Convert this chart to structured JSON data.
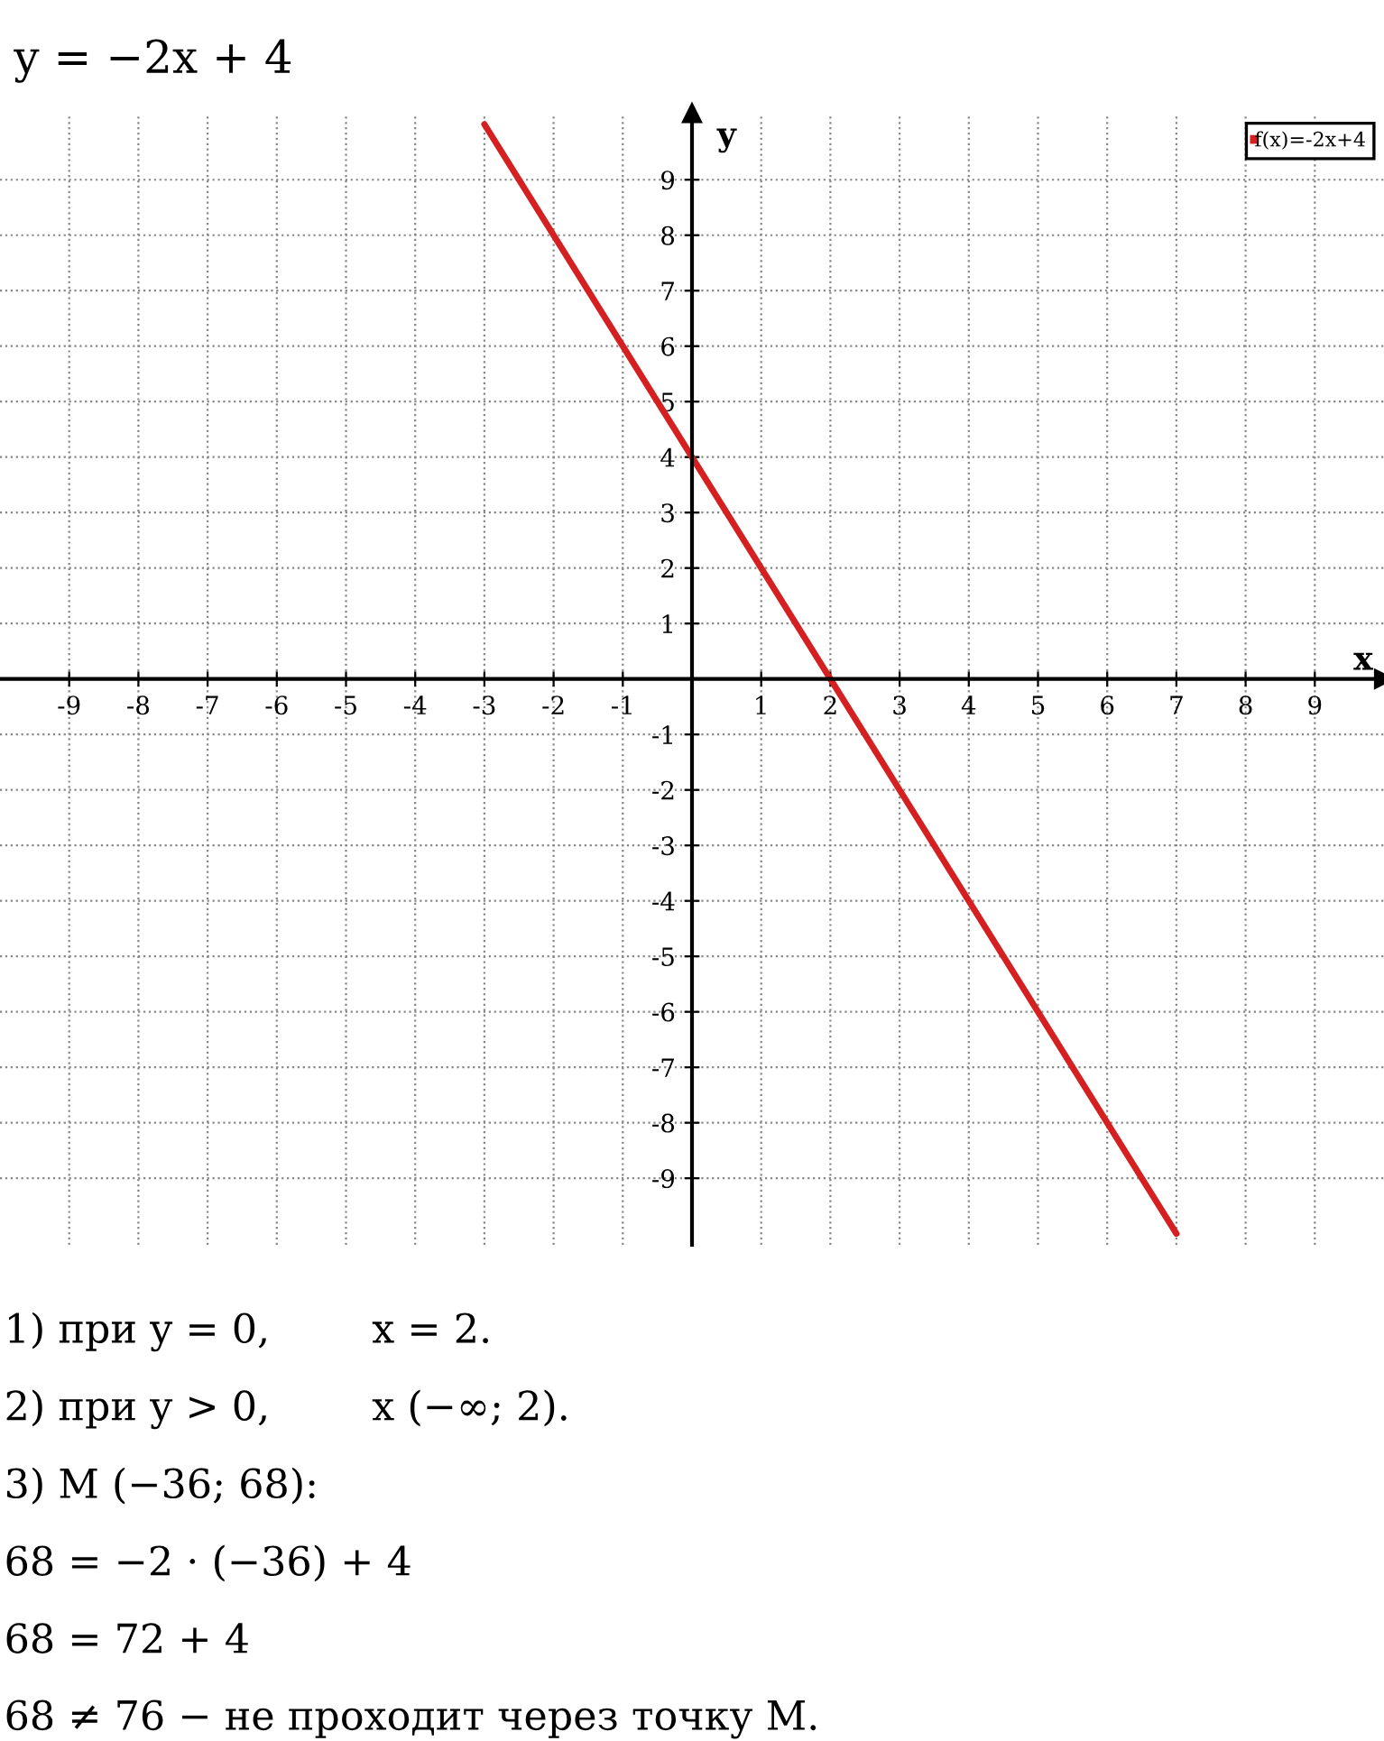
{
  "chart_data": {
    "type": "line",
    "title": "y = −2x + 4",
    "xlabel": "x",
    "ylabel": "y",
    "x": [
      -3,
      7
    ],
    "series": [
      {
        "name": "f(x)=-2x+4",
        "color": "#d42020",
        "values": [
          10,
          -10
        ]
      }
    ],
    "xlim": [
      -10,
      10
    ],
    "ylim": [
      -10.2,
      10.2
    ],
    "xticks": [
      -9,
      -8,
      -7,
      -6,
      -5,
      -4,
      -3,
      -2,
      -1,
      1,
      2,
      3,
      4,
      5,
      6,
      7,
      8,
      9
    ],
    "yticks": [
      -9,
      -8,
      -7,
      -6,
      -5,
      -4,
      -3,
      -2,
      -1,
      1,
      2,
      3,
      4,
      5,
      6,
      7,
      8,
      9
    ],
    "grid": true,
    "legend": "top right",
    "marker": "none",
    "line_style": "solid",
    "annotations": [
      "1) при y = 0,        x = 2.",
      "2) при y > 0,        x (−∞; 2).",
      "3) M (−36; 68):",
      "68 = −2 · (−36) + 4",
      "68 = 72 + 4",
      "68 ≠ 76 − не проходит через точку M."
    ]
  }
}
